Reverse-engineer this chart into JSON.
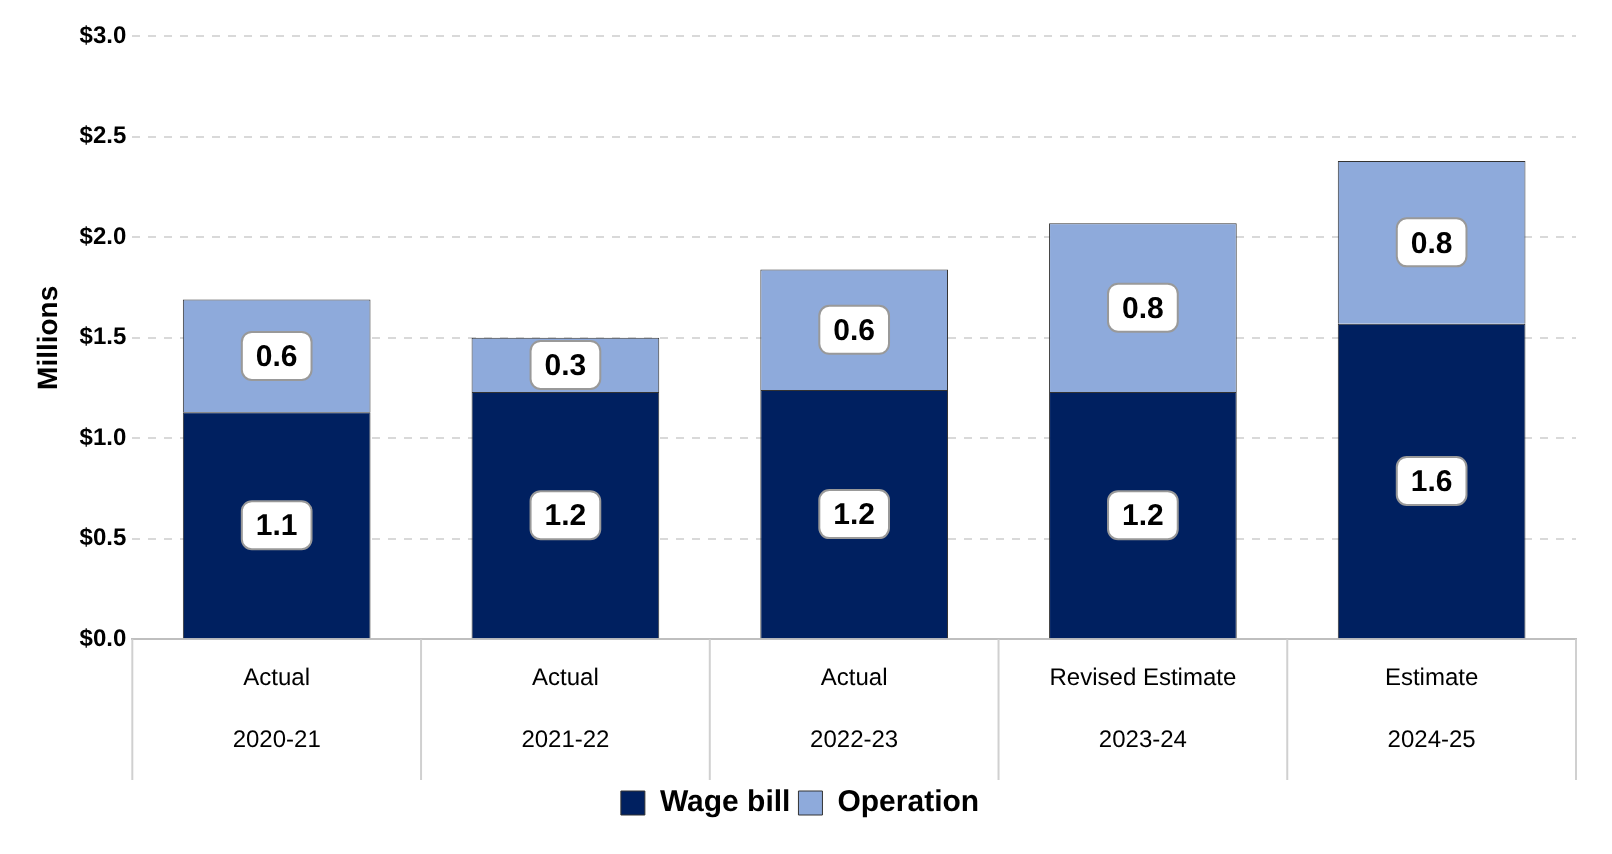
{
  "chart_data": {
    "type": "bar",
    "ylabel": "Millions",
    "categories": [
      "Actual\n2020-21",
      "Actual\n2021-22",
      "Actual\n2022-23",
      "Revised Estimate\n2023-24",
      "Estimate\n2024-25"
    ],
    "stacked": true,
    "series": [
      {
        "name": "Wage bill",
        "color": "#002060",
        "values": [
          1.13,
          1.23,
          1.24,
          1.23,
          1.57
        ],
        "value_labels": [
          "1.1",
          "1.2",
          "1.2",
          "1.2",
          "1.6"
        ]
      },
      {
        "name": "Operation",
        "color": "#8eaadb",
        "values": [
          0.56,
          0.27,
          0.6,
          0.84,
          0.81
        ],
        "value_labels": [
          "0.6",
          "0.3",
          "0.6",
          "0.8",
          "0.8"
        ]
      }
    ],
    "ylim": [
      0,
      3
    ],
    "yticks": [
      {
        "value": 0,
        "label": "$0.0"
      },
      {
        "value": 0.5,
        "label": "$0.5"
      },
      {
        "value": 1,
        "label": "$1.0"
      },
      {
        "value": 1.5,
        "label": "$1.5"
      },
      {
        "value": 2,
        "label": "$2.0"
      },
      {
        "value": 2.5,
        "label": "$2.5"
      },
      {
        "value": 3,
        "label": "$3.0"
      }
    ],
    "grid": "y",
    "legend": "bottom"
  }
}
